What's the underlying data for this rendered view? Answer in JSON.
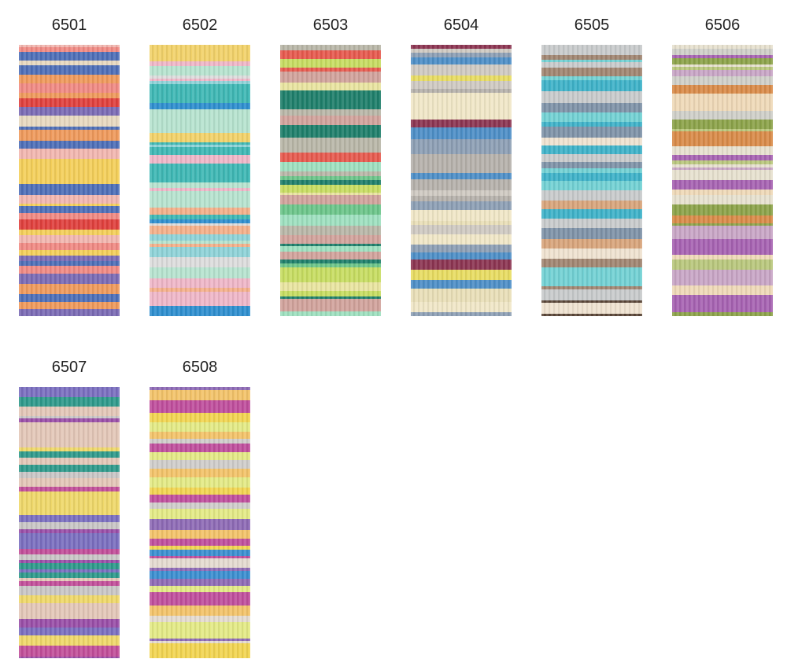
{
  "swatches": [
    {
      "label": "6501"
    },
    {
      "label": "6502"
    },
    {
      "label": "6503"
    },
    {
      "label": "6504"
    },
    {
      "label": "6505"
    },
    {
      "label": "6506"
    },
    {
      "label": "6507"
    },
    {
      "label": "6508"
    }
  ]
}
